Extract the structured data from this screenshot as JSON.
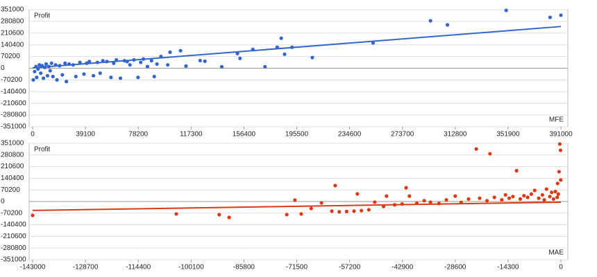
{
  "chart_data": [
    {
      "type": "scatter",
      "ylabel": "Profit",
      "xlabel": "MFE",
      "color": "#3366cc",
      "xlim": [
        0,
        391000
      ],
      "ylim": [
        -351000,
        351000
      ],
      "xticks": [
        0,
        39100,
        78200,
        117300,
        156400,
        195500,
        234600,
        273700,
        312800,
        351900,
        391000
      ],
      "yticks": [
        351000,
        280800,
        210600,
        140400,
        70200,
        0,
        -70200,
        -140400,
        -210600,
        -280800,
        -351000
      ],
      "grid": true,
      "x": [
        500,
        1500,
        2500,
        3000,
        4000,
        5000,
        6000,
        7000,
        8000,
        9000,
        10000,
        11000,
        12000,
        13000,
        14000,
        15000,
        17000,
        18000,
        20000,
        22000,
        24000,
        25000,
        27000,
        30000,
        32000,
        35000,
        38000,
        40000,
        42000,
        45000,
        48000,
        50000,
        52000,
        55000,
        58000,
        60000,
        62000,
        65000,
        68000,
        70000,
        72000,
        75000,
        78000,
        80000,
        82000,
        85000,
        88000,
        90000,
        92000,
        95000,
        100000,
        101700,
        109500,
        113500,
        124000,
        127500,
        140000,
        151600,
        153500,
        163000,
        172000,
        181000,
        184000,
        186500,
        192000,
        207000,
        252000,
        294500,
        307000,
        350500,
        383000,
        391000
      ],
      "values": [
        -70000,
        -20000,
        10000,
        -55000,
        -5000,
        20000,
        -30000,
        15000,
        -60000,
        5000,
        25000,
        -45000,
        10000,
        -15000,
        30000,
        -50000,
        20000,
        -70000,
        15000,
        -40000,
        30000,
        -80000,
        25000,
        20000,
        -50000,
        35000,
        -35000,
        30000,
        40000,
        -45000,
        35000,
        -30000,
        45000,
        40000,
        -55000,
        30000,
        50000,
        -60000,
        45000,
        40000,
        20000,
        50000,
        -55000,
        35000,
        55000,
        10000,
        45000,
        -50000,
        25000,
        70000,
        20000,
        96000,
        105000,
        13000,
        46000,
        42000,
        9000,
        88000,
        59000,
        113000,
        9000,
        126000,
        180000,
        84000,
        126000,
        64000,
        151600,
        284500,
        260000,
        347000,
        305000,
        318000
      ],
      "trend": {
        "x": [
          0,
          391000
        ],
        "y": [
          2000,
          250000
        ]
      }
    },
    {
      "type": "scatter",
      "ylabel": "Profit",
      "xlabel": "MAE",
      "color": "#dc3912",
      "xlim": [
        -143000,
        0
      ],
      "ylim": [
        -351000,
        351000
      ],
      "xticks": [
        -143000,
        -128700,
        -114400,
        -100100,
        -85800,
        -71500,
        -57200,
        -42900,
        -28600,
        -14300,
        0
      ],
      "yticks": [
        351000,
        280800,
        210600,
        140400,
        70200,
        0,
        -70200,
        -140400,
        -210600,
        -280800,
        -351000
      ],
      "grid": true,
      "x": [
        -143000,
        -104100,
        -92500,
        -89800,
        -74200,
        -72000,
        -70300,
        -67600,
        -64800,
        -62000,
        -61100,
        -60000,
        -58000,
        -56000,
        -55100,
        -54000,
        -52000,
        -50400,
        -48000,
        -47200,
        -45000,
        -43000,
        -41900,
        -41000,
        -39000,
        -37000,
        -35300,
        -33000,
        -31000,
        -28600,
        -27000,
        -25000,
        -22900,
        -22000,
        -20000,
        -19200,
        -18000,
        -16000,
        -15000,
        -14000,
        -13000,
        -12000,
        -11000,
        -10000,
        -9000,
        -8000,
        -7100,
        -6000,
        -5000,
        -4500,
        -3900,
        -3000,
        -2500,
        -2000,
        -1500,
        -1000,
        -900,
        -700,
        -500,
        -300,
        -100,
        -50
      ],
      "values": [
        -83600,
        -75000,
        -79400,
        -96000,
        -79000,
        8300,
        -75000,
        -42000,
        -8400,
        -58000,
        96000,
        -62000,
        -60000,
        -58000,
        46000,
        -55000,
        -50000,
        -4000,
        -30000,
        33000,
        -20000,
        -15000,
        83000,
        33000,
        -10000,
        5000,
        -4000,
        -12000,
        10000,
        33000,
        -5000,
        15000,
        317000,
        20000,
        5000,
        288000,
        25000,
        10000,
        40000,
        20000,
        30000,
        186000,
        15000,
        35000,
        25000,
        45000,
        67000,
        20000,
        40000,
        10000,
        75000,
        30000,
        55000,
        15000,
        60000,
        25000,
        109000,
        45000,
        180000,
        347000,
        309000,
        130000
      ],
      "trend": {
        "x": [
          -143000,
          0
        ],
        "y": [
          -54000,
          -4000
        ]
      }
    }
  ]
}
